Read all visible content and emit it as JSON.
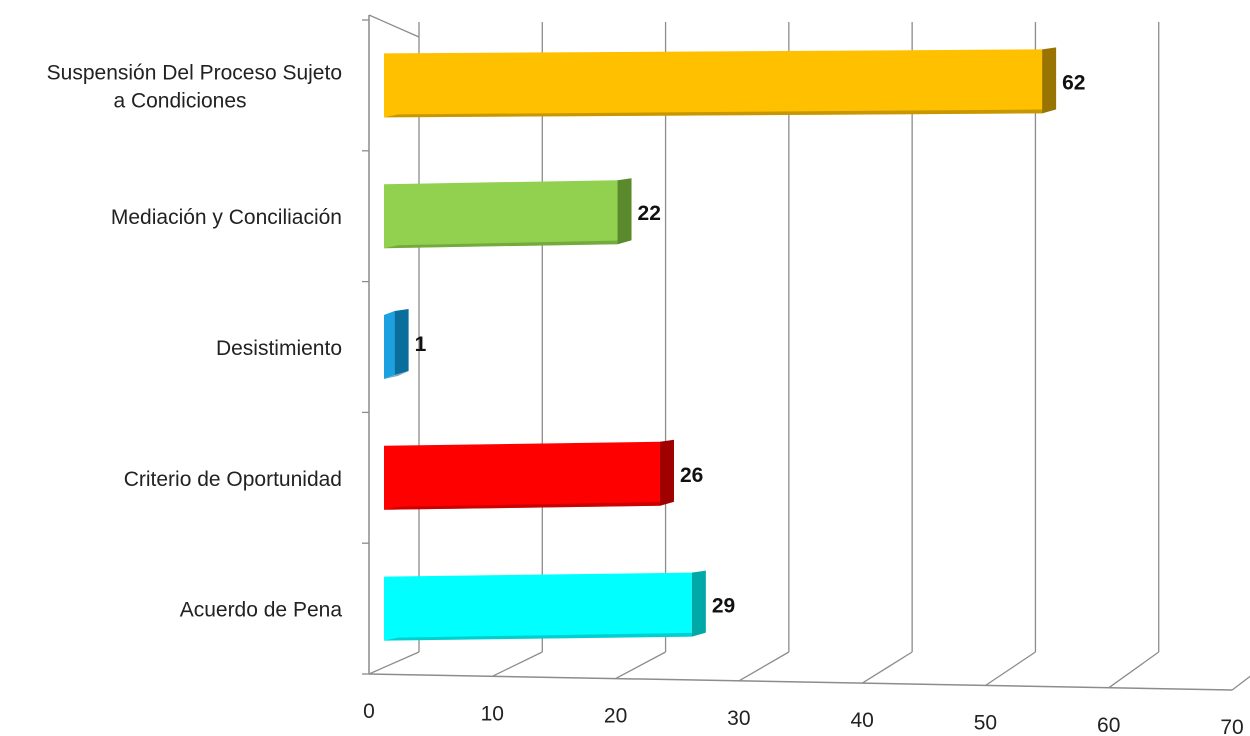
{
  "chart_data": {
    "type": "bar",
    "orientation": "horizontal",
    "three_d": true,
    "title": "",
    "xlabel": "",
    "ylabel": "",
    "categories": [
      [
        "Suspensión Del Proceso Sujeto",
        "a Condiciones"
      ],
      [
        "Mediación y Conciliación"
      ],
      [
        "Desistimiento"
      ],
      [
        "Criterio de Oportunidad"
      ],
      [
        "Acuerdo de Pena"
      ]
    ],
    "values": [
      62,
      22,
      1,
      26,
      29
    ],
    "data_labels": [
      "62",
      "22",
      "1",
      "26",
      "29"
    ],
    "colors": [
      "#ffc000",
      "#92d050",
      "#1ba1e2",
      "#ff0000",
      "#00ffff"
    ],
    "side_colors": [
      "#9a7400",
      "#5a8a2c",
      "#0a6e9c",
      "#a00000",
      "#00a8a8"
    ],
    "xlim": [
      0,
      70
    ],
    "xticks": [
      "0",
      "10",
      "20",
      "30",
      "40",
      "50",
      "60",
      "70"
    ],
    "grid": true,
    "legend": "none"
  }
}
